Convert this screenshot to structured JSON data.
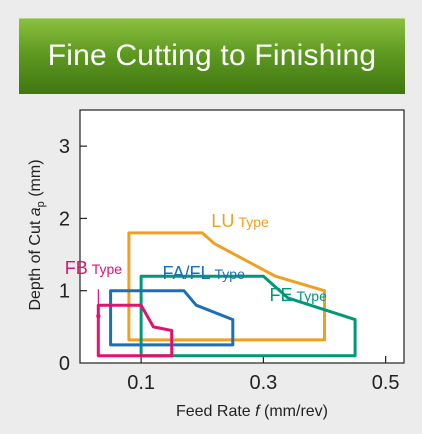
{
  "header": {
    "title": "Fine Cutting to Finishing"
  },
  "chart_data": {
    "type": "area",
    "title": "Fine Cutting to Finishing",
    "xlabel": {
      "prefix": "Feed Rate ",
      "var": "f",
      "suffix": " (mm/rev)"
    },
    "ylabel": {
      "prefix": "Depth of Cut ",
      "var": "a",
      "sub": "p",
      "suffix": " (mm)"
    },
    "xlim": [
      0,
      0.53
    ],
    "ylim": [
      0,
      3.5
    ],
    "xticks": [
      {
        "value": 0.1,
        "label": "0.1"
      },
      {
        "value": 0.3,
        "label": "0.3"
      },
      {
        "value": 0.5,
        "label": "0.5"
      }
    ],
    "yticks": [
      {
        "value": 0,
        "label": "0"
      },
      {
        "value": 1,
        "label": "1"
      },
      {
        "value": 2,
        "label": "2"
      },
      {
        "value": 3,
        "label": "3"
      }
    ],
    "series": [
      {
        "name": "LU",
        "suffix": "Type",
        "color": "#f0a020",
        "points": [
          [
            0.08,
            0.32
          ],
          [
            0.08,
            1.8
          ],
          [
            0.2,
            1.8
          ],
          [
            0.22,
            1.65
          ],
          [
            0.32,
            1.2
          ],
          [
            0.4,
            1.0
          ],
          [
            0.4,
            0.32
          ]
        ],
        "label_at": [
          0.215,
          1.88
        ]
      },
      {
        "name": "FE",
        "suffix": "Type",
        "color": "#009977",
        "points": [
          [
            0.1,
            0.1
          ],
          [
            0.1,
            1.2
          ],
          [
            0.3,
            1.2
          ],
          [
            0.34,
            0.9
          ],
          [
            0.45,
            0.6
          ],
          [
            0.45,
            0.1
          ]
        ],
        "label_at": [
          0.31,
          0.86
        ]
      },
      {
        "name": "FA/FL",
        "suffix": "Type",
        "color": "#1a6fb8",
        "points": [
          [
            0.05,
            0.25
          ],
          [
            0.05,
            1.0
          ],
          [
            0.17,
            1.0
          ],
          [
            0.19,
            0.8
          ],
          [
            0.25,
            0.6
          ],
          [
            0.25,
            0.25
          ]
        ],
        "label_at": [
          0.135,
          1.16
        ]
      },
      {
        "name": "FB",
        "suffix": "Type",
        "color": "#e0136e",
        "points": [
          [
            0.03,
            0.1
          ],
          [
            0.03,
            0.8
          ],
          [
            0.1,
            0.8
          ],
          [
            0.12,
            0.5
          ],
          [
            0.15,
            0.45
          ],
          [
            0.15,
            0.1
          ]
        ],
        "label_at": [
          -0.025,
          1.23
        ],
        "leader": [
          [
            0.03,
            1.02
          ],
          [
            0.03,
            0.65
          ]
        ]
      }
    ]
  }
}
